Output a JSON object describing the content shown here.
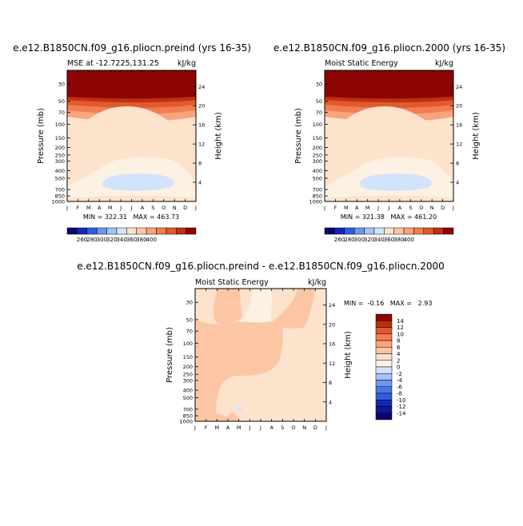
{
  "chart_data": [
    {
      "type": "heatmap",
      "title": "e.e12.B1850CN.f09_g16.pliocn.preind (yrs 16-35)",
      "subtitle_left": "MSE at -12.7225,131.25",
      "units": "kJ/kg",
      "xlabel": "",
      "ylabel": "Pressure (mb)",
      "ylabel_right": "Height (km)",
      "x_ticks": [
        "J",
        "F",
        "M",
        "A",
        "M",
        "J",
        "J",
        "A",
        "S",
        "O",
        "N",
        "D",
        "J"
      ],
      "pressure_ticks": [
        "30",
        "50",
        "70",
        "100",
        "150",
        "200",
        "250",
        "300",
        "400",
        "500",
        "700",
        "850",
        "1000"
      ],
      "height_ticks": [
        "4",
        "8",
        "12",
        "16",
        "20",
        "24"
      ],
      "ylim_mb": [
        1000,
        20
      ],
      "stats": "MIN = 322.31   MAX = 463.73",
      "levels": [
        260,
        280,
        300,
        320,
        340,
        360,
        380,
        400
      ],
      "colorbar_labels": [
        "260",
        "280",
        "300",
        "320",
        "340",
        "360",
        "380",
        "400"
      ],
      "colorbar_colors": [
        "#08086e",
        "#1427b8",
        "#2e5fe0",
        "#6f95ee",
        "#a6c3f6",
        "#d2e4fb",
        "#fde3cc",
        "#fcc6a4",
        "#f9a47a",
        "#f27d52",
        "#e05a2e",
        "#bf300f",
        "#8c0504"
      ],
      "pressure_profile_kJkg": [
        {
          "p_mb": 20,
          "mse": 460
        },
        {
          "p_mb": 40,
          "mse": 405
        },
        {
          "p_mb": 50,
          "mse": 385
        },
        {
          "p_mb": 70,
          "mse": 365
        },
        {
          "p_mb": 100,
          "mse": 350
        },
        {
          "p_mb": 150,
          "mse": 340
        },
        {
          "p_mb": 300,
          "mse": 335
        },
        {
          "p_mb": 600,
          "mse": 325
        },
        {
          "p_mb": 900,
          "mse": 332
        },
        {
          "p_mb": 1000,
          "mse": 340
        }
      ]
    },
    {
      "type": "heatmap",
      "title": "e.e12.B1850CN.f09_g16.pliocn.2000 (yrs 16-35)",
      "subtitle_left": "Moist Static Energy",
      "units": "kJ/kg",
      "ylabel": "Pressure (mb)",
      "ylabel_right": "Height (km)",
      "x_ticks": [
        "J",
        "F",
        "M",
        "A",
        "M",
        "J",
        "J",
        "A",
        "S",
        "O",
        "N",
        "D",
        "J"
      ],
      "pressure_ticks": [
        "30",
        "50",
        "70",
        "100",
        "150",
        "200",
        "250",
        "300",
        "400",
        "500",
        "700",
        "850",
        "1000"
      ],
      "height_ticks": [
        "4",
        "8",
        "12",
        "16",
        "20",
        "24"
      ],
      "ylim_mb": [
        1000,
        20
      ],
      "stats": "MIN = 321.38   MAX = 461.20",
      "levels": [
        260,
        280,
        300,
        320,
        340,
        360,
        380,
        400
      ],
      "colorbar_labels": [
        "260",
        "280",
        "300",
        "320",
        "340",
        "360",
        "380",
        "400"
      ]
    },
    {
      "type": "heatmap",
      "title": "e.e12.B1850CN.f09_g16.pliocn.preind - e.e12.B1850CN.f09_g16.pliocn.2000",
      "subtitle_left": "Moist Static Energy",
      "units": "kJ/kg",
      "ylabel": "Pressure (mb)",
      "ylabel_right": "Height (km)",
      "x_ticks": [
        "J",
        "F",
        "M",
        "A",
        "M",
        "J",
        "J",
        "A",
        "S",
        "O",
        "N",
        "D",
        "J"
      ],
      "pressure_ticks": [
        "30",
        "50",
        "70",
        "100",
        "150",
        "200",
        "250",
        "300",
        "400",
        "500",
        "700",
        "850",
        "1000"
      ],
      "height_ticks": [
        "4",
        "8",
        "12",
        "16",
        "20",
        "24"
      ],
      "ylim_mb": [
        1000,
        20
      ],
      "stats": "MIN =  -0.16   MAX =   2.93",
      "levels": [
        -14,
        -12,
        -10,
        -8,
        -6,
        -4,
        -2,
        0,
        2,
        4,
        6,
        8,
        10,
        12,
        14
      ],
      "colorbar_labels": [
        "14",
        "12",
        "10",
        "8",
        "6",
        "4",
        "2",
        "0",
        "-2",
        "-4",
        "-6",
        "-8",
        "-10",
        "-12",
        "-14"
      ]
    }
  ]
}
